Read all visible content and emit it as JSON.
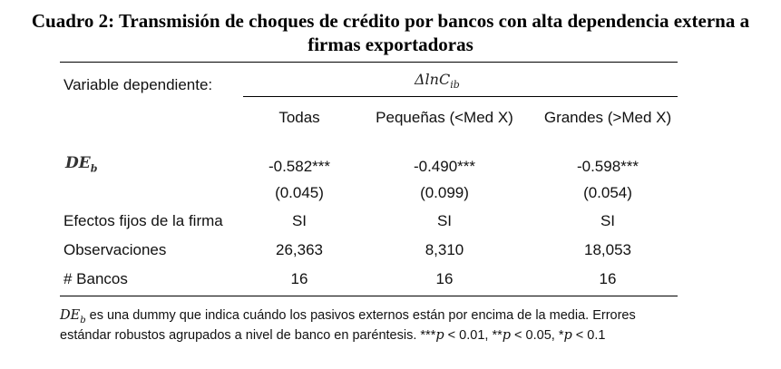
{
  "title": {
    "line1": "Cuadro 2: Transmisión de choques de crédito por bancos con alta dependencia externa a",
    "line2": "firmas exportadoras"
  },
  "header": {
    "dep_label": "Variable dependiente:",
    "dep_symbol": "ΔlnC",
    "dep_sub": "ib",
    "columns": [
      "Todas",
      "Pequeñas (<Med X)",
      "Grandes (>Med X)"
    ]
  },
  "rows": {
    "deb": {
      "label": "DE",
      "sub": "b",
      "values": [
        "-0.582***",
        "-0.490***",
        "-0.598***"
      ]
    },
    "se": {
      "values": [
        "(0.045)",
        "(0.099)",
        "(0.054)"
      ]
    },
    "fe": {
      "label": "Efectos fijos de la firma",
      "values": [
        "SI",
        "SI",
        "SI"
      ]
    },
    "obs": {
      "label": "Observaciones",
      "values": [
        "26,363",
        "8,310",
        "18,053"
      ]
    },
    "banks": {
      "label": "# Bancos",
      "values": [
        "16",
        "16",
        "16"
      ]
    }
  },
  "note": {
    "sym": "DE",
    "sub": "b",
    "line1_rest": " es una dummy que indica cuándo los pasivos externos están por encima de la media. Errores",
    "line2_start": "estándar robustos agrupados a nivel de banco en paréntesis. ***",
    "p1": "p",
    "p1_rest": " < 0.01, **",
    "p2": "p",
    "p2_rest": " < 0.05, *",
    "p3": "p",
    "p3_rest": " < 0.1"
  }
}
